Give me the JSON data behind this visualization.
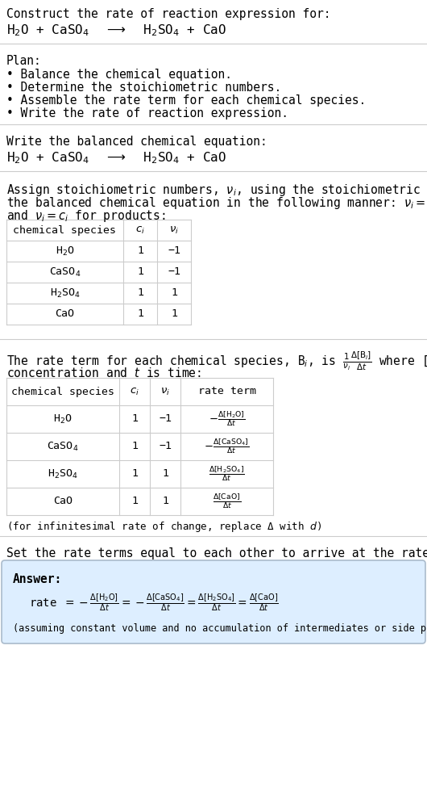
{
  "bg_color": "#ffffff",
  "text_color": "#000000",
  "title_line1": "Construct the rate of reaction expression for:",
  "reaction_equation": "H$_2$O + CaSO$_4$  $\\longrightarrow$  H$_2$SO$_4$ + CaO",
  "plan_header": "Plan:",
  "plan_items": [
    "• Balance the chemical equation.",
    "• Determine the stoichiometric numbers.",
    "• Assemble the rate term for each chemical species.",
    "• Write the rate of reaction expression."
  ],
  "balanced_header": "Write the balanced chemical equation:",
  "balanced_eq": "H$_2$O + CaSO$_4$  $\\longrightarrow$  H$_2$SO$_4$ + CaO",
  "assign_text1": "Assign stoichiometric numbers, $\\nu_i$, using the stoichiometric coefficients, $c_i$, from",
  "assign_text2": "the balanced chemical equation in the following manner: $\\nu_i = -c_i$ for reactants",
  "assign_text3": "and $\\nu_i = c_i$ for products:",
  "table1_headers": [
    "chemical species",
    "$c_i$",
    "$\\nu_i$"
  ],
  "table1_rows": [
    [
      "H$_2$O",
      "1",
      "−1"
    ],
    [
      "CaSO$_4$",
      "1",
      "−1"
    ],
    [
      "H$_2$SO$_4$",
      "1",
      "1"
    ],
    [
      "CaO",
      "1",
      "1"
    ]
  ],
  "rate_text1": "The rate term for each chemical species, B$_i$, is $\\frac{1}{\\nu_i}\\frac{\\Delta[\\mathrm{B}_i]}{\\Delta t}$ where [B$_i$] is the amount",
  "rate_text2": "concentration and $t$ is time:",
  "table2_headers": [
    "chemical species",
    "$c_i$",
    "$\\nu_i$",
    "rate term"
  ],
  "table2_rows": [
    [
      "H$_2$O",
      "1",
      "−1",
      "$-\\frac{\\Delta[\\mathrm{H_2O}]}{\\Delta t}$"
    ],
    [
      "CaSO$_4$",
      "1",
      "−1",
      "$-\\frac{\\Delta[\\mathrm{CaSO_4}]}{\\Delta t}$"
    ],
    [
      "H$_2$SO$_4$",
      "1",
      "1",
      "$\\frac{\\Delta[\\mathrm{H_2SO_4}]}{\\Delta t}$"
    ],
    [
      "CaO",
      "1",
      "1",
      "$\\frac{\\Delta[\\mathrm{CaO}]}{\\Delta t}$"
    ]
  ],
  "infinitesimal_note": "(for infinitesimal rate of change, replace Δ with $d$)",
  "set_rate_text": "Set the rate terms equal to each other to arrive at the rate expression:",
  "answer_box_color": "#ddeeff",
  "answer_border_color": "#aabbcc",
  "answer_label": "Answer:",
  "rate_expression": "rate $= -\\frac{\\Delta[\\mathrm{H_2O}]}{\\Delta t} = -\\frac{\\Delta[\\mathrm{CaSO_4}]}{\\Delta t} = \\frac{\\Delta[\\mathrm{H_2SO_4}]}{\\Delta t} = \\frac{\\Delta[\\mathrm{CaO}]}{\\Delta t}$",
  "assuming_note": "(assuming constant volume and no accumulation of intermediates or side products)"
}
